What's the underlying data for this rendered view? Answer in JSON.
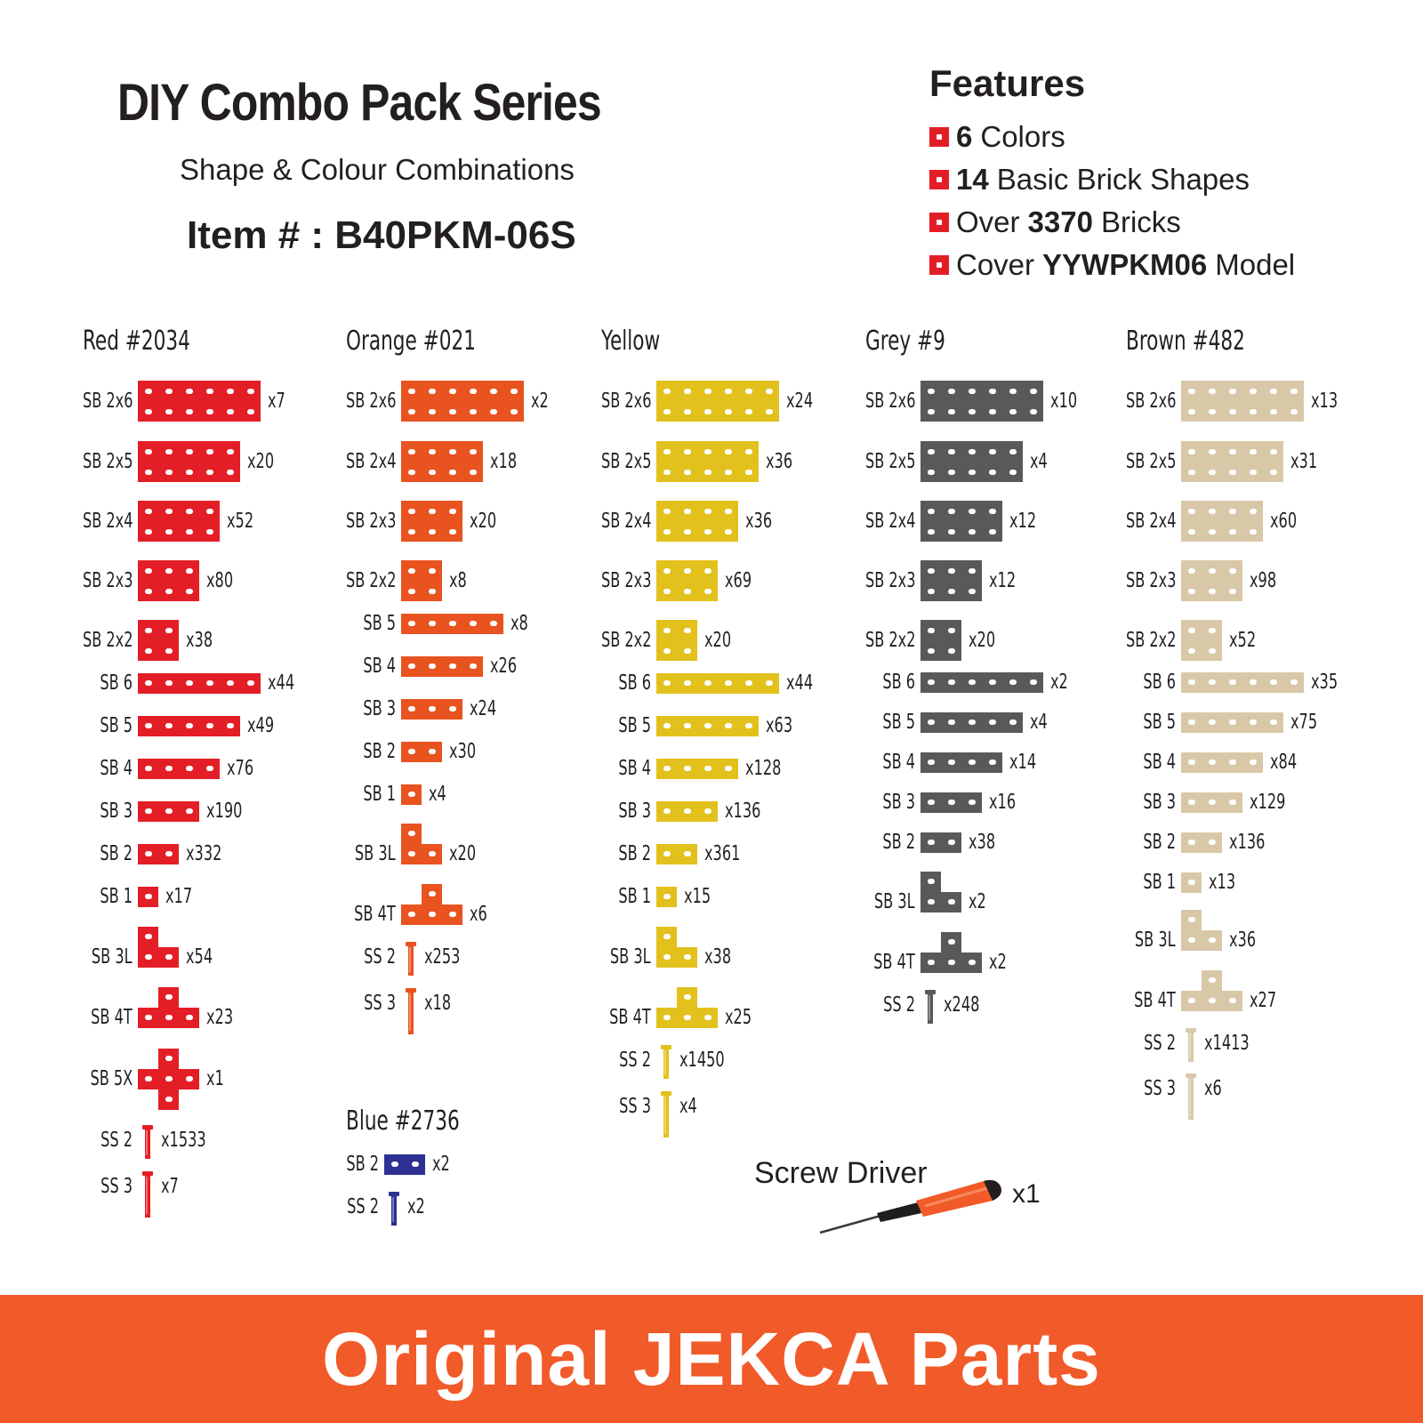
{
  "header": {
    "title": "DIY Combo Pack Series",
    "subtitle": "Shape & Colour Combinations",
    "item_number": "Item # : B40PKM-06S"
  },
  "features": {
    "title": "Features",
    "items": [
      {
        "pre": "",
        "bold": "6",
        "post": "Colors"
      },
      {
        "pre": "",
        "bold": "14",
        "post": "Basic Brick Shapes"
      },
      {
        "pre": "Over",
        "bold": "3370",
        "post": "Bricks"
      },
      {
        "pre": "Cover",
        "bold": "YYWPKM06",
        "post": "Model"
      }
    ],
    "bullet_color": "#e41e26"
  },
  "columns": [
    {
      "name": "Red #2034",
      "color": "#e41e26",
      "parts": [
        {
          "label": "SB 2x6",
          "qty": "x7",
          "shape": "2x6"
        },
        {
          "label": "SB 2x5",
          "qty": "x20",
          "shape": "2x5"
        },
        {
          "label": "SB 2x4",
          "qty": "x52",
          "shape": "2x4"
        },
        {
          "label": "SB 2x3",
          "qty": "x80",
          "shape": "2x3"
        },
        {
          "label": "SB 2x2",
          "qty": "x38",
          "shape": "2x2"
        },
        {
          "label": "SB 6",
          "qty": "x44",
          "shape": "6"
        },
        {
          "label": "SB 5",
          "qty": "x49",
          "shape": "5"
        },
        {
          "label": "SB 4",
          "qty": "x76",
          "shape": "4"
        },
        {
          "label": "SB 3",
          "qty": "x190",
          "shape": "3"
        },
        {
          "label": "SB 2",
          "qty": "x332",
          "shape": "2"
        },
        {
          "label": "SB 1",
          "qty": "x17",
          "shape": "1"
        },
        {
          "label": "SB 3L",
          "qty": "x54",
          "shape": "3L"
        },
        {
          "label": "SB 4T",
          "qty": "x23",
          "shape": "4T"
        },
        {
          "label": "SB 5X",
          "qty": "x1",
          "shape": "5X"
        },
        {
          "label": "SS 2",
          "qty": "x1533",
          "shape": "SS2"
        },
        {
          "label": "SS 3",
          "qty": "x7",
          "shape": "SS3"
        }
      ]
    },
    {
      "name": "Orange #021",
      "color": "#e8531f",
      "parts": [
        {
          "label": "SB 2x6",
          "qty": "x2",
          "shape": "2x6"
        },
        {
          "label": "SB 2x4",
          "qty": "x18",
          "shape": "2x4"
        },
        {
          "label": "SB 2x3",
          "qty": "x20",
          "shape": "2x3"
        },
        {
          "label": "SB 2x2",
          "qty": "x8",
          "shape": "2x2"
        },
        {
          "label": "SB 5",
          "qty": "x8",
          "shape": "5"
        },
        {
          "label": "SB 4",
          "qty": "x26",
          "shape": "4"
        },
        {
          "label": "SB 3",
          "qty": "x24",
          "shape": "3"
        },
        {
          "label": "SB 2",
          "qty": "x30",
          "shape": "2"
        },
        {
          "label": "SB 1",
          "qty": "x4",
          "shape": "1"
        },
        {
          "label": "SB 3L",
          "qty": "x20",
          "shape": "3L"
        },
        {
          "label": "SB 4T",
          "qty": "x6",
          "shape": "4T"
        },
        {
          "label": "SS 2",
          "qty": "x253",
          "shape": "SS2"
        },
        {
          "label": "SS 3",
          "qty": "x18",
          "shape": "SS3"
        }
      ]
    },
    {
      "name": "Yellow",
      "color": "#e2c11c",
      "parts": [
        {
          "label": "SB 2x6",
          "qty": "x24",
          "shape": "2x6"
        },
        {
          "label": "SB 2x5",
          "qty": "x36",
          "shape": "2x5"
        },
        {
          "label": "SB 2x4",
          "qty": "x36",
          "shape": "2x4"
        },
        {
          "label": "SB 2x3",
          "qty": "x69",
          "shape": "2x3"
        },
        {
          "label": "SB 2x2",
          "qty": "x20",
          "shape": "2x2"
        },
        {
          "label": "SB 6",
          "qty": "x44",
          "shape": "6"
        },
        {
          "label": "SB 5",
          "qty": "x63",
          "shape": "5"
        },
        {
          "label": "SB 4",
          "qty": "x128",
          "shape": "4"
        },
        {
          "label": "SB 3",
          "qty": "x136",
          "shape": "3"
        },
        {
          "label": "SB 2",
          "qty": "x361",
          "shape": "2"
        },
        {
          "label": "SB 1",
          "qty": "x15",
          "shape": "1"
        },
        {
          "label": "SB 3L",
          "qty": "x38",
          "shape": "3L"
        },
        {
          "label": "SB 4T",
          "qty": "x25",
          "shape": "4T"
        },
        {
          "label": "SS 2",
          "qty": "x1450",
          "shape": "SS2"
        },
        {
          "label": "SS 3",
          "qty": "x4",
          "shape": "SS3"
        }
      ]
    },
    {
      "name": "Grey #9",
      "color": "#58595b",
      "parts": [
        {
          "label": "SB 2x6",
          "qty": "x10",
          "shape": "2x6"
        },
        {
          "label": "SB 2x5",
          "qty": "x4",
          "shape": "2x5"
        },
        {
          "label": "SB 2x4",
          "qty": "x12",
          "shape": "2x4"
        },
        {
          "label": "SB 2x3",
          "qty": "x12",
          "shape": "2x3"
        },
        {
          "label": "SB 2x2",
          "qty": "x20",
          "shape": "2x2"
        },
        {
          "label": "SB 6",
          "qty": "x2",
          "shape": "6"
        },
        {
          "label": "SB 5",
          "qty": "x4",
          "shape": "5"
        },
        {
          "label": "SB 4",
          "qty": "x14",
          "shape": "4"
        },
        {
          "label": "SB 3",
          "qty": "x16",
          "shape": "3"
        },
        {
          "label": "SB 2",
          "qty": "x38",
          "shape": "2"
        },
        {
          "label": "SB 3L",
          "qty": "x2",
          "shape": "3L"
        },
        {
          "label": "SB 4T",
          "qty": "x2",
          "shape": "4T"
        },
        {
          "label": "SS 2",
          "qty": "x248",
          "shape": "SS2"
        }
      ]
    },
    {
      "name": "Brown #482",
      "color": "#d9c8a8",
      "parts": [
        {
          "label": "SB 2x6",
          "qty": "x13",
          "shape": "2x6"
        },
        {
          "label": "SB 2x5",
          "qty": "x31",
          "shape": "2x5"
        },
        {
          "label": "SB 2x4",
          "qty": "x60",
          "shape": "2x4"
        },
        {
          "label": "SB 2x3",
          "qty": "x98",
          "shape": "2x3"
        },
        {
          "label": "SB 2x2",
          "qty": "x52",
          "shape": "2x2"
        },
        {
          "label": "SB 6",
          "qty": "x35",
          "shape": "6"
        },
        {
          "label": "SB 5",
          "qty": "x75",
          "shape": "5"
        },
        {
          "label": "SB 4",
          "qty": "x84",
          "shape": "4"
        },
        {
          "label": "SB 3",
          "qty": "x129",
          "shape": "3"
        },
        {
          "label": "SB 2",
          "qty": "x136",
          "shape": "2"
        },
        {
          "label": "SB 1",
          "qty": "x13",
          "shape": "1"
        },
        {
          "label": "SB 3L",
          "qty": "x36",
          "shape": "3L"
        },
        {
          "label": "SB 4T",
          "qty": "x27",
          "shape": "4T"
        },
        {
          "label": "SS 2",
          "qty": "x1413",
          "shape": "SS2"
        },
        {
          "label": "SS 3",
          "qty": "x6",
          "shape": "SS3"
        }
      ]
    },
    {
      "name": "Blue #2736",
      "color": "#2e3192",
      "parts": [
        {
          "label": "SB 2",
          "qty": "x2",
          "shape": "2"
        },
        {
          "label": "SS 2",
          "qty": "x2",
          "shape": "SS2"
        }
      ]
    }
  ],
  "screw_driver": {
    "label": "Screw Driver",
    "qty": "x1",
    "icon": "screwdriver-icon",
    "handle_color": "#f15a29"
  },
  "footer": {
    "text": "Original JEKCA Parts",
    "background": "#f15a29"
  }
}
